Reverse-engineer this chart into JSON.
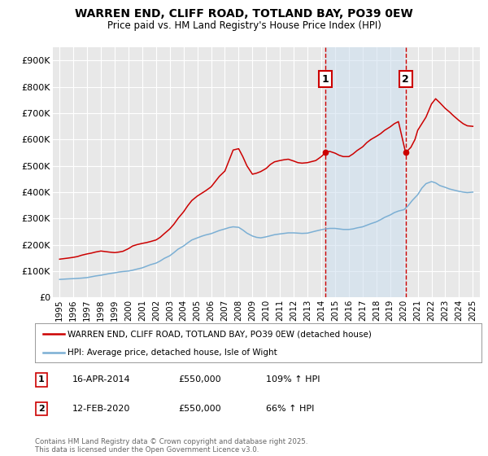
{
  "title": "WARREN END, CLIFF ROAD, TOTLAND BAY, PO39 0EW",
  "subtitle": "Price paid vs. HM Land Registry's House Price Index (HPI)",
  "title_fontsize": 10,
  "subtitle_fontsize": 8.5,
  "background_color": "#ffffff",
  "plot_bg_color": "#e8e8e8",
  "grid_color": "#ffffff",
  "red_line_color": "#cc0000",
  "blue_line_color": "#7bafd4",
  "marker1_x": 2014.29,
  "marker1_y": 550000,
  "marker2_x": 2020.12,
  "marker2_y": 550000,
  "vline1_x": 2014.29,
  "vline2_x": 2020.12,
  "shade_xmin": 2014.29,
  "shade_xmax": 2020.12,
  "ylim": [
    0,
    950000
  ],
  "xlim": [
    1994.5,
    2025.5
  ],
  "ytick_values": [
    0,
    100000,
    200000,
    300000,
    400000,
    500000,
    600000,
    700000,
    800000,
    900000
  ],
  "ytick_labels": [
    "£0",
    "£100K",
    "£200K",
    "£300K",
    "£400K",
    "£500K",
    "£600K",
    "£700K",
    "£800K",
    "£900K"
  ],
  "xtick_values": [
    1995,
    1996,
    1997,
    1998,
    1999,
    2000,
    2001,
    2002,
    2003,
    2004,
    2005,
    2006,
    2007,
    2008,
    2009,
    2010,
    2011,
    2012,
    2013,
    2014,
    2015,
    2016,
    2017,
    2018,
    2019,
    2020,
    2021,
    2022,
    2023,
    2024,
    2025
  ],
  "legend_red_label": "WARREN END, CLIFF ROAD, TOTLAND BAY, PO39 0EW (detached house)",
  "legend_blue_label": "HPI: Average price, detached house, Isle of Wight",
  "annotation1": [
    "1",
    "16-APR-2014",
    "£550,000",
    "109% ↑ HPI"
  ],
  "annotation2": [
    "2",
    "12-FEB-2020",
    "£550,000",
    "66% ↑ HPI"
  ],
  "footer": "Contains HM Land Registry data © Crown copyright and database right 2025.\nThis data is licensed under the Open Government Licence v3.0.",
  "red_x": [
    1995.0,
    1995.3,
    1995.6,
    1996.0,
    1996.3,
    1996.6,
    1997.0,
    1997.3,
    1997.6,
    1998.0,
    1998.3,
    1998.6,
    1999.0,
    1999.3,
    1999.6,
    2000.0,
    2000.3,
    2000.6,
    2001.0,
    2001.3,
    2001.6,
    2002.0,
    2002.3,
    2002.6,
    2003.0,
    2003.3,
    2003.6,
    2004.0,
    2004.3,
    2004.6,
    2005.0,
    2005.3,
    2005.6,
    2006.0,
    2006.3,
    2006.6,
    2007.0,
    2007.3,
    2007.6,
    2008.0,
    2008.3,
    2008.6,
    2009.0,
    2009.3,
    2009.6,
    2010.0,
    2010.3,
    2010.6,
    2011.0,
    2011.3,
    2011.6,
    2012.0,
    2012.3,
    2012.6,
    2013.0,
    2013.3,
    2013.6,
    2014.0,
    2014.29,
    2014.6,
    2015.0,
    2015.3,
    2015.6,
    2016.0,
    2016.3,
    2016.6,
    2017.0,
    2017.3,
    2017.6,
    2018.0,
    2018.3,
    2018.6,
    2019.0,
    2019.3,
    2019.6,
    2020.12,
    2020.5,
    2020.8,
    2021.0,
    2021.3,
    2021.6,
    2022.0,
    2022.3,
    2022.6,
    2023.0,
    2023.3,
    2023.6,
    2024.0,
    2024.3,
    2024.6,
    2025.0
  ],
  "red_y": [
    145000,
    147000,
    149000,
    152000,
    155000,
    160000,
    165000,
    168000,
    172000,
    176000,
    174000,
    172000,
    170000,
    172000,
    175000,
    185000,
    195000,
    200000,
    205000,
    208000,
    212000,
    218000,
    228000,
    242000,
    260000,
    278000,
    300000,
    325000,
    348000,
    368000,
    385000,
    395000,
    405000,
    420000,
    440000,
    460000,
    480000,
    520000,
    560000,
    565000,
    535000,
    500000,
    468000,
    472000,
    478000,
    490000,
    505000,
    515000,
    520000,
    523000,
    525000,
    518000,
    512000,
    510000,
    512000,
    516000,
    520000,
    535000,
    550000,
    555000,
    548000,
    540000,
    535000,
    535000,
    545000,
    558000,
    572000,
    588000,
    600000,
    612000,
    622000,
    635000,
    648000,
    660000,
    668000,
    550000,
    570000,
    600000,
    635000,
    660000,
    685000,
    735000,
    755000,
    740000,
    718000,
    705000,
    690000,
    672000,
    660000,
    652000,
    650000
  ],
  "blue_x": [
    1995.0,
    1995.3,
    1995.6,
    1996.0,
    1996.3,
    1996.6,
    1997.0,
    1997.3,
    1997.6,
    1998.0,
    1998.3,
    1998.6,
    1999.0,
    1999.3,
    1999.6,
    2000.0,
    2000.3,
    2000.6,
    2001.0,
    2001.3,
    2001.6,
    2002.0,
    2002.3,
    2002.6,
    2003.0,
    2003.3,
    2003.6,
    2004.0,
    2004.3,
    2004.6,
    2005.0,
    2005.3,
    2005.6,
    2006.0,
    2006.3,
    2006.6,
    2007.0,
    2007.3,
    2007.6,
    2008.0,
    2008.3,
    2008.6,
    2009.0,
    2009.3,
    2009.6,
    2010.0,
    2010.3,
    2010.6,
    2011.0,
    2011.3,
    2011.6,
    2012.0,
    2012.3,
    2012.6,
    2013.0,
    2013.3,
    2013.6,
    2014.0,
    2014.3,
    2014.6,
    2015.0,
    2015.3,
    2015.6,
    2016.0,
    2016.3,
    2016.6,
    2017.0,
    2017.3,
    2017.6,
    2018.0,
    2018.3,
    2018.6,
    2019.0,
    2019.3,
    2019.6,
    2020.0,
    2020.3,
    2020.6,
    2021.0,
    2021.3,
    2021.6,
    2022.0,
    2022.3,
    2022.6,
    2023.0,
    2023.3,
    2023.6,
    2024.0,
    2024.3,
    2024.6,
    2025.0
  ],
  "blue_y": [
    68000,
    69000,
    70000,
    71000,
    72000,
    73000,
    75000,
    78000,
    81000,
    84000,
    87000,
    90000,
    93000,
    96000,
    98000,
    100000,
    103000,
    107000,
    112000,
    118000,
    124000,
    130000,
    138000,
    148000,
    158000,
    170000,
    183000,
    195000,
    207000,
    218000,
    226000,
    232000,
    237000,
    242000,
    248000,
    254000,
    260000,
    265000,
    268000,
    266000,
    256000,
    244000,
    233000,
    228000,
    226000,
    230000,
    234000,
    238000,
    241000,
    243000,
    245000,
    245000,
    244000,
    243000,
    244000,
    248000,
    252000,
    257000,
    260000,
    262000,
    262000,
    260000,
    258000,
    258000,
    260000,
    264000,
    268000,
    274000,
    280000,
    287000,
    295000,
    304000,
    313000,
    322000,
    328000,
    333000,
    348000,
    368000,
    390000,
    415000,
    432000,
    440000,
    435000,
    425000,
    418000,
    412000,
    408000,
    403000,
    400000,
    398000,
    400000
  ]
}
